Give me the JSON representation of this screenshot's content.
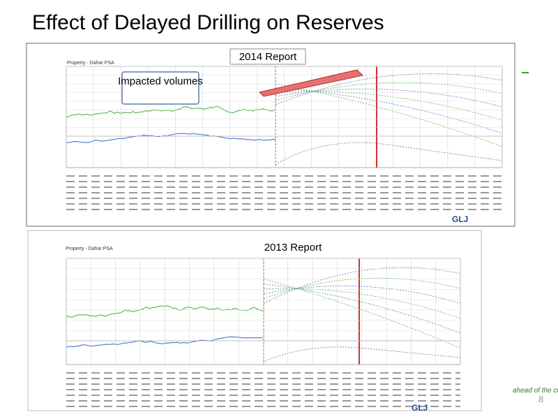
{
  "slide": {
    "title": "Effect of Delayed Drilling on Reserves",
    "page_number": "8"
  },
  "report_2014": {
    "label": "2014 Report",
    "callout": "Impacted volumes",
    "property": "Property - Dahar PSA",
    "logo": "GLJ"
  },
  "report_2013": {
    "label": "2013 Report",
    "property": "Property - Dahar PSA",
    "logo": "GLJ"
  },
  "footer": {
    "tagline": "ahead of the curve"
  }
}
